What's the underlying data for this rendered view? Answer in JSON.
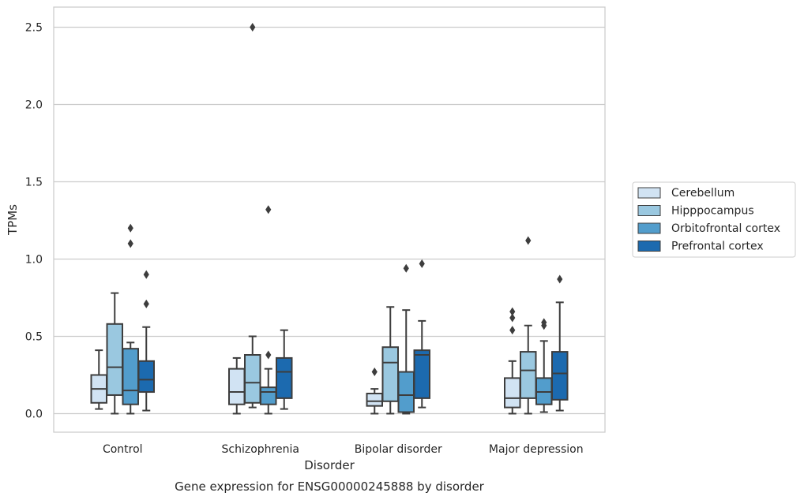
{
  "chart_data": {
    "type": "box",
    "title": "",
    "caption": "Gene expression for ENSG00000245888 by disorder",
    "xlabel": "Disorder",
    "ylabel": "TPMs",
    "ylim": [
      -0.12,
      2.63
    ],
    "yticks": [
      "0.0",
      "0.5",
      "1.0",
      "1.5",
      "2.0",
      "2.5"
    ],
    "grid": true,
    "legend_placement": "right",
    "categories": [
      "Control",
      "Schizophrenia",
      "Bipolar disorder",
      "Major depression"
    ],
    "series": [
      {
        "name": "Cerebellum",
        "color": "#d1e3f3",
        "boxes": [
          {
            "whisker_low": 0.03,
            "q1": 0.07,
            "median": 0.16,
            "q3": 0.25,
            "whisker_high": 0.41,
            "outliers": []
          },
          {
            "whisker_low": 0.0,
            "q1": 0.06,
            "median": 0.14,
            "q3": 0.29,
            "whisker_high": 0.36,
            "outliers": []
          },
          {
            "whisker_low": 0.0,
            "q1": 0.05,
            "median": 0.08,
            "q3": 0.13,
            "whisker_high": 0.16,
            "outliers": [
              0.27
            ]
          },
          {
            "whisker_low": 0.0,
            "q1": 0.04,
            "median": 0.1,
            "q3": 0.23,
            "whisker_high": 0.34,
            "outliers": [
              0.54,
              0.62,
              0.66
            ]
          }
        ]
      },
      {
        "name": "Hipppocampus",
        "color": "#9ac8e0",
        "boxes": [
          {
            "whisker_low": 0.0,
            "q1": 0.12,
            "median": 0.3,
            "q3": 0.58,
            "whisker_high": 0.78,
            "outliers": []
          },
          {
            "whisker_low": 0.04,
            "q1": 0.07,
            "median": 0.2,
            "q3": 0.38,
            "whisker_high": 0.5,
            "outliers": [
              2.5
            ]
          },
          {
            "whisker_low": 0.0,
            "q1": 0.08,
            "median": 0.33,
            "q3": 0.43,
            "whisker_high": 0.69,
            "outliers": []
          },
          {
            "whisker_low": 0.0,
            "q1": 0.1,
            "median": 0.28,
            "q3": 0.4,
            "whisker_high": 0.57,
            "outliers": [
              1.12
            ]
          }
        ]
      },
      {
        "name": "Orbitofrontal cortex",
        "color": "#529dcc",
        "boxes": [
          {
            "whisker_low": 0.0,
            "q1": 0.06,
            "median": 0.15,
            "q3": 0.42,
            "whisker_high": 0.46,
            "outliers": [
              1.1,
              1.2
            ]
          },
          {
            "whisker_low": 0.0,
            "q1": 0.06,
            "median": 0.14,
            "q3": 0.17,
            "whisker_high": 0.29,
            "outliers": [
              0.38,
              1.32
            ]
          },
          {
            "whisker_low": 0.0,
            "q1": 0.01,
            "median": 0.12,
            "q3": 0.27,
            "whisker_high": 0.67,
            "outliers": [
              0.94
            ]
          },
          {
            "whisker_low": 0.01,
            "q1": 0.06,
            "median": 0.14,
            "q3": 0.23,
            "whisker_high": 0.47,
            "outliers": [
              0.57,
              0.59
            ]
          }
        ]
      },
      {
        "name": "Prefrontal cortex",
        "color": "#1c6aaf",
        "boxes": [
          {
            "whisker_low": 0.02,
            "q1": 0.14,
            "median": 0.22,
            "q3": 0.34,
            "whisker_high": 0.56,
            "outliers": [
              0.71,
              0.9
            ]
          },
          {
            "whisker_low": 0.03,
            "q1": 0.1,
            "median": 0.27,
            "q3": 0.36,
            "whisker_high": 0.54,
            "outliers": []
          },
          {
            "whisker_low": 0.04,
            "q1": 0.1,
            "median": 0.38,
            "q3": 0.41,
            "whisker_high": 0.6,
            "outliers": [
              0.97
            ]
          },
          {
            "whisker_low": 0.02,
            "q1": 0.09,
            "median": 0.26,
            "q3": 0.4,
            "whisker_high": 0.72,
            "outliers": [
              0.87
            ]
          }
        ]
      }
    ]
  }
}
